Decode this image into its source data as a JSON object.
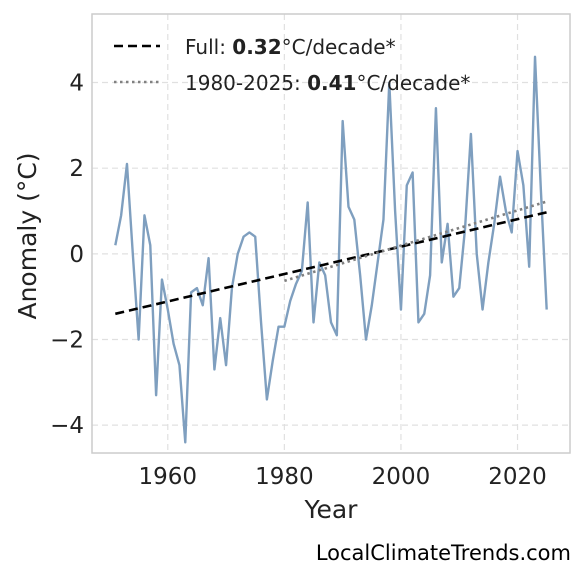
{
  "chart_data": {
    "type": "line",
    "xlabel": "Year",
    "ylabel": "Anomaly (°C)",
    "xlim": [
      1947,
      2029
    ],
    "ylim": [
      -4.65,
      5.6
    ],
    "xticks": [
      1960,
      1980,
      2000,
      2020
    ],
    "yticks": [
      -4,
      -2,
      0,
      2,
      4
    ],
    "xtick_labels": [
      "1960",
      "1980",
      "2000",
      "2020"
    ],
    "ytick_labels": [
      "−4",
      "−2",
      "0",
      "2",
      "4"
    ],
    "grid": true,
    "legend_position": "top-left",
    "series": [
      {
        "color": "#7f9fbf",
        "x": [
          1951,
          1952,
          1953,
          1954,
          1955,
          1956,
          1957,
          1958,
          1959,
          1960,
          1961,
          1962,
          1963,
          1964,
          1965,
          1966,
          1967,
          1968,
          1969,
          1970,
          1971,
          1972,
          1973,
          1974,
          1975,
          1976,
          1977,
          1978,
          1979,
          1980,
          1981,
          1982,
          1983,
          1984,
          1985,
          1986,
          1987,
          1988,
          1989,
          1990,
          1991,
          1992,
          1993,
          1994,
          1995,
          1996,
          1997,
          1998,
          1999,
          2000,
          2001,
          2002,
          2003,
          2004,
          2005,
          2006,
          2007,
          2008,
          2009,
          2010,
          2011,
          2012,
          2013,
          2014,
          2015,
          2016,
          2017,
          2018,
          2019,
          2020,
          2021,
          2022,
          2023,
          2024,
          2025
        ],
        "y": [
          0.2,
          0.9,
          2.1,
          0.0,
          -2.0,
          0.9,
          0.2,
          -3.3,
          -0.6,
          -1.3,
          -2.1,
          -2.6,
          -4.4,
          -0.9,
          -0.8,
          -1.2,
          -0.1,
          -2.7,
          -1.5,
          -2.6,
          -0.8,
          0.0,
          0.4,
          0.5,
          0.4,
          -1.6,
          -3.4,
          -2.5,
          -1.7,
          -1.7,
          -1.1,
          -0.7,
          -0.4,
          1.2,
          -1.6,
          -0.2,
          -0.5,
          -1.6,
          -1.9,
          3.1,
          1.1,
          0.8,
          -0.5,
          -2.0,
          -1.2,
          -0.2,
          0.8,
          4.0,
          1.0,
          -1.3,
          1.6,
          1.9,
          -1.6,
          -1.4,
          -0.5,
          3.4,
          -0.2,
          0.7,
          -1.0,
          -0.8,
          0.6,
          2.8,
          0.0,
          -1.3,
          -0.2,
          0.7,
          1.8,
          1.0,
          0.5,
          2.4,
          1.6,
          -0.3,
          4.6,
          1.5,
          -1.3
        ]
      }
    ],
    "trend_lines": [
      {
        "label_prefix": "Full: ",
        "label_value": "0.32",
        "label_suffix": "°C/decade*",
        "style": "dashed",
        "color": "#000000",
        "x": [
          1951,
          2025
        ],
        "y": [
          -1.4,
          0.97
        ]
      },
      {
        "label_prefix": "1980-2025: ",
        "label_value": "0.41",
        "label_suffix": "°C/decade*",
        "style": "dotted",
        "color": "#808080",
        "x": [
          1980,
          2025
        ],
        "y": [
          -0.63,
          1.22
        ]
      }
    ],
    "source_text": "LocalClimateTrends.com"
  }
}
